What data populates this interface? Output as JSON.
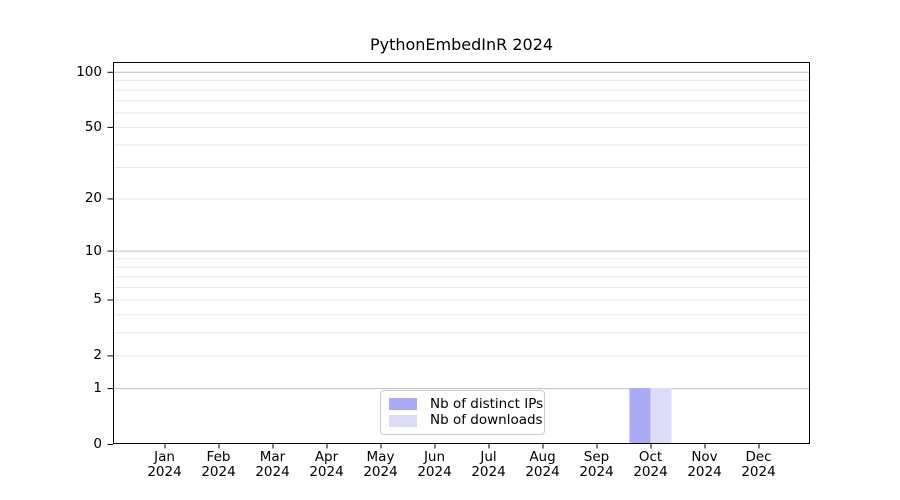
{
  "title": "PythonEmbedInR 2024",
  "chart_data": {
    "type": "bar",
    "title": "PythonEmbedInR 2024",
    "categories": [
      "Jan",
      "Feb",
      "Mar",
      "Apr",
      "May",
      "Jun",
      "Jul",
      "Aug",
      "Sep",
      "Oct",
      "Nov",
      "Dec"
    ],
    "category_year": "2024",
    "series": [
      {
        "name": "Nb of distinct IPs",
        "color": "#aaaaf6",
        "values": [
          0,
          0,
          0,
          0,
          0,
          0,
          0,
          0,
          0,
          1,
          0,
          0
        ]
      },
      {
        "name": "Nb of downloads",
        "color": "#dcdcf9",
        "values": [
          0,
          0,
          0,
          0,
          0,
          0,
          0,
          0,
          0,
          1,
          0,
          0
        ]
      }
    ],
    "yscale": "log1p",
    "ylim": [
      0,
      113
    ],
    "ytick_values": [
      0,
      1,
      2,
      5,
      10,
      20,
      50,
      100
    ],
    "ytick_labels": [
      "0",
      "1",
      "2",
      "5",
      "10",
      "20",
      "50",
      "100"
    ],
    "major_gridlines": [
      1,
      10,
      100
    ],
    "minor_gridlines": [
      2,
      3,
      4,
      5,
      6,
      7,
      8,
      9,
      20,
      30,
      40,
      50,
      60,
      70,
      80,
      90
    ],
    "grid": true,
    "legend_position": "bottom-center",
    "colors": {
      "major_grid": "#c0c0c0",
      "minor_grid": "#e8e8e8",
      "axis": "#000000",
      "background": "#ffffff"
    }
  }
}
